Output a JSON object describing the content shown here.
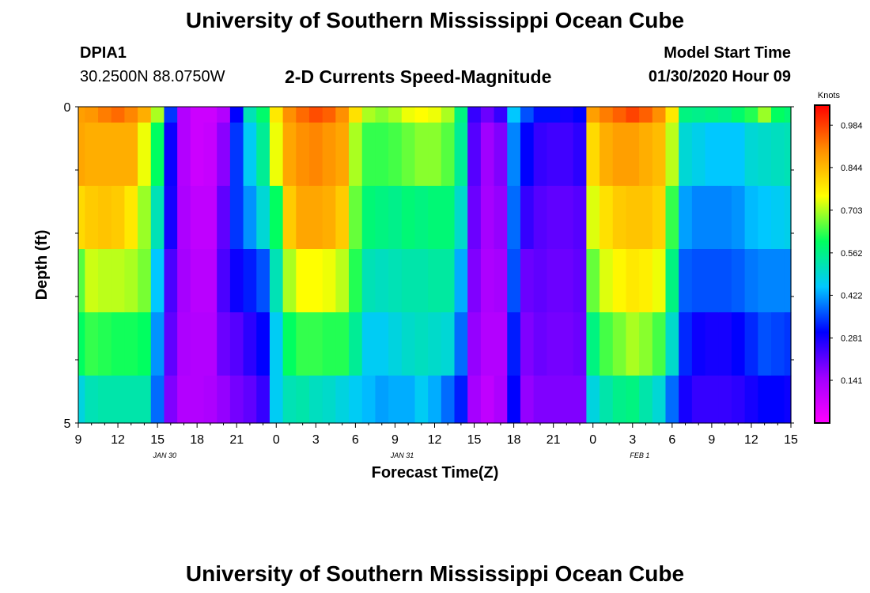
{
  "header": {
    "title": "University of Southern Mississippi Ocean Cube",
    "station_id": "DPIA1",
    "station_coords": "30.2500N 88.0750W",
    "subtitle": "2-D Currents Speed-Magnitude",
    "model_start_label": "Model Start Time",
    "model_start_value": "01/30/2020 Hour 09"
  },
  "footer": {
    "title": "University of Southern Mississippi Ocean Cube"
  },
  "chart_data": {
    "type": "heatmap",
    "xlabel": "Forecast Time(Z)",
    "ylabel": "Depth (ft)",
    "ylim": [
      0,
      5
    ],
    "y_ticks": [
      "0",
      "5"
    ],
    "x_hours": [
      9,
      10,
      11,
      12,
      13,
      14,
      15,
      16,
      17,
      18,
      19,
      20,
      21,
      22,
      23,
      0,
      1,
      2,
      3,
      4,
      5,
      6,
      7,
      8,
      9,
      10,
      11,
      12,
      13,
      14,
      15,
      16,
      17,
      18,
      19,
      20,
      21,
      22,
      23,
      0,
      1,
      2,
      3,
      4,
      5,
      6,
      7,
      8,
      9,
      10,
      11,
      12,
      13,
      14,
      15
    ],
    "x_tick_labels": [
      "9",
      "12",
      "15",
      "18",
      "21",
      "0",
      "3",
      "6",
      "9",
      "12",
      "15",
      "18",
      "21",
      "0",
      "3",
      "6",
      "9",
      "12",
      "15"
    ],
    "date_labels": [
      {
        "text": "JAN 30",
        "at_hour_index": 12
      },
      {
        "text": "JAN 31",
        "at_hour_index": 45
      },
      {
        "text": "FEB 1",
        "at_hour_index": 78
      }
    ],
    "depth_levels": [
      0.25,
      1.25,
      2.25,
      3.25,
      4.25,
      5.0
    ],
    "values": [
      [
        0.88,
        0.87,
        0.8,
        0.65,
        0.6,
        0.48
      ],
      [
        0.89,
        0.86,
        0.82,
        0.72,
        0.63,
        0.52
      ],
      [
        0.92,
        0.86,
        0.83,
        0.71,
        0.62,
        0.53
      ],
      [
        0.94,
        0.86,
        0.82,
        0.71,
        0.61,
        0.53
      ],
      [
        0.91,
        0.86,
        0.78,
        0.7,
        0.61,
        0.53
      ],
      [
        0.86,
        0.74,
        0.69,
        0.67,
        0.6,
        0.53
      ],
      [
        0.7,
        0.6,
        0.52,
        0.45,
        0.41,
        0.38
      ],
      [
        0.34,
        0.29,
        0.28,
        0.23,
        0.21,
        0.18
      ],
      [
        0.12,
        0.12,
        0.13,
        0.14,
        0.13,
        0.12
      ],
      [
        0.08,
        0.08,
        0.1,
        0.11,
        0.12,
        0.12
      ],
      [
        0.08,
        0.09,
        0.1,
        0.11,
        0.12,
        0.13
      ],
      [
        0.12,
        0.17,
        0.21,
        0.23,
        0.2,
        0.16
      ],
      [
        0.3,
        0.34,
        0.34,
        0.29,
        0.22,
        0.19
      ],
      [
        0.52,
        0.46,
        0.41,
        0.32,
        0.26,
        0.21
      ],
      [
        0.59,
        0.55,
        0.49,
        0.36,
        0.3,
        0.25
      ],
      [
        0.78,
        0.74,
        0.6,
        0.52,
        0.46,
        0.46
      ],
      [
        0.9,
        0.87,
        0.82,
        0.7,
        0.6,
        0.52
      ],
      [
        0.94,
        0.9,
        0.87,
        0.75,
        0.63,
        0.53
      ],
      [
        0.97,
        0.91,
        0.87,
        0.75,
        0.63,
        0.51
      ],
      [
        0.95,
        0.89,
        0.86,
        0.74,
        0.62,
        0.5
      ],
      [
        0.9,
        0.87,
        0.82,
        0.71,
        0.62,
        0.48
      ],
      [
        0.79,
        0.7,
        0.66,
        0.62,
        0.55,
        0.46
      ],
      [
        0.7,
        0.63,
        0.58,
        0.52,
        0.46,
        0.44
      ],
      [
        0.68,
        0.63,
        0.57,
        0.51,
        0.46,
        0.42
      ],
      [
        0.7,
        0.64,
        0.56,
        0.52,
        0.48,
        0.43
      ],
      [
        0.74,
        0.66,
        0.58,
        0.53,
        0.5,
        0.43
      ],
      [
        0.75,
        0.68,
        0.57,
        0.53,
        0.51,
        0.46
      ],
      [
        0.74,
        0.68,
        0.58,
        0.54,
        0.5,
        0.43
      ],
      [
        0.7,
        0.65,
        0.58,
        0.54,
        0.49,
        0.38
      ],
      [
        0.57,
        0.55,
        0.5,
        0.43,
        0.38,
        0.32
      ],
      [
        0.25,
        0.22,
        0.2,
        0.18,
        0.16,
        0.14
      ],
      [
        0.2,
        0.15,
        0.14,
        0.13,
        0.12,
        0.1
      ],
      [
        0.25,
        0.18,
        0.16,
        0.14,
        0.12,
        0.13
      ],
      [
        0.45,
        0.4,
        0.38,
        0.36,
        0.32,
        0.3
      ],
      [
        0.36,
        0.3,
        0.25,
        0.2,
        0.18,
        0.16
      ],
      [
        0.31,
        0.25,
        0.22,
        0.21,
        0.2,
        0.18
      ],
      [
        0.31,
        0.24,
        0.21,
        0.2,
        0.19,
        0.18
      ],
      [
        0.28,
        0.24,
        0.21,
        0.2,
        0.19,
        0.18
      ],
      [
        0.3,
        0.26,
        0.22,
        0.21,
        0.2,
        0.18
      ],
      [
        0.88,
        0.8,
        0.73,
        0.66,
        0.57,
        0.48
      ],
      [
        0.92,
        0.86,
        0.79,
        0.73,
        0.64,
        0.53
      ],
      [
        0.95,
        0.88,
        0.82,
        0.76,
        0.67,
        0.56
      ],
      [
        0.98,
        0.88,
        0.83,
        0.78,
        0.7,
        0.57
      ],
      [
        0.95,
        0.86,
        0.83,
        0.77,
        0.68,
        0.53
      ],
      [
        0.9,
        0.84,
        0.81,
        0.74,
        0.64,
        0.49
      ],
      [
        0.78,
        0.71,
        0.63,
        0.57,
        0.5,
        0.38
      ],
      [
        0.57,
        0.49,
        0.42,
        0.37,
        0.33,
        0.28
      ],
      [
        0.56,
        0.47,
        0.4,
        0.36,
        0.29,
        0.25
      ],
      [
        0.57,
        0.45,
        0.4,
        0.36,
        0.28,
        0.25
      ],
      [
        0.56,
        0.45,
        0.4,
        0.36,
        0.28,
        0.25
      ],
      [
        0.59,
        0.45,
        0.41,
        0.37,
        0.3,
        0.26
      ],
      [
        0.62,
        0.49,
        0.44,
        0.39,
        0.33,
        0.28
      ],
      [
        0.69,
        0.5,
        0.45,
        0.4,
        0.36,
        0.3
      ],
      [
        0.6,
        0.51,
        0.46,
        0.4,
        0.35,
        0.3
      ],
      [
        0.58,
        0.52,
        0.47,
        0.4,
        0.34,
        0.29
      ]
    ],
    "colorbar": {
      "label": "Knots",
      "ticks": [
        "0.984",
        "0.844",
        "0.703",
        "0.562",
        "0.422",
        "0.281",
        "0.141"
      ],
      "tick_values": [
        0.984,
        0.844,
        0.703,
        0.562,
        0.422,
        0.281,
        0.141
      ],
      "range": [
        0.0,
        1.05
      ],
      "colors": [
        "#ff00ff",
        "#a000ff",
        "#0000ff",
        "#00c8ff",
        "#00ff60",
        "#ffff00",
        "#ff9000",
        "#ff0000"
      ]
    }
  }
}
